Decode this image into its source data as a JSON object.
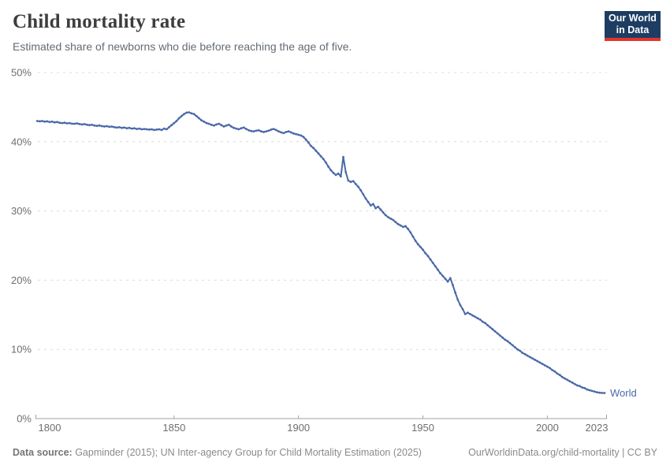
{
  "header": {
    "title": "Child mortality rate",
    "subtitle": "Estimated share of newborns who die before reaching the age of five.",
    "logo": {
      "line1": "Our World",
      "line2": "in Data"
    }
  },
  "footer": {
    "source_label": "Data source:",
    "source_text": " Gapminder (2015); UN Inter-agency Group for Child Mortality Estimation (2025)",
    "url": "OurWorldinData.org/child-mortality",
    "license_suffix": " | CC BY"
  },
  "chart_data": {
    "type": "line",
    "title": "Child mortality rate",
    "xlabel": "",
    "ylabel": "",
    "xlim": [
      1795,
      2023
    ],
    "ylim": [
      0,
      50
    ],
    "grid": "horizontal-dashed",
    "legend_position": "end-of-line",
    "colors": {
      "line": "#4a69a8",
      "gridline": "#dcdcdc",
      "axis": "#a1a1a1",
      "tick_label": "#6e6e6e"
    },
    "y_ticks": [
      {
        "value": 0,
        "label": "0%"
      },
      {
        "value": 10,
        "label": "10%"
      },
      {
        "value": 20,
        "label": "20%"
      },
      {
        "value": 30,
        "label": "30%"
      },
      {
        "value": 40,
        "label": "40%"
      },
      {
        "value": 50,
        "label": "50%"
      }
    ],
    "x_ticks": [
      {
        "value": 1800,
        "label": "1800"
      },
      {
        "value": 1850,
        "label": "1850"
      },
      {
        "value": 1900,
        "label": "1900"
      },
      {
        "value": 1950,
        "label": "1950"
      },
      {
        "value": 2000,
        "label": "2000"
      },
      {
        "value": 2023,
        "label": "2023"
      }
    ],
    "series": [
      {
        "name": "World",
        "color": "#4a69a8",
        "start_year": 1795,
        "end_year": 2023,
        "annual_values": [
          43.0,
          42.95,
          43.0,
          42.9,
          42.95,
          42.85,
          42.9,
          42.8,
          42.85,
          42.75,
          42.7,
          42.75,
          42.65,
          42.7,
          42.6,
          42.6,
          42.65,
          42.55,
          42.5,
          42.55,
          42.45,
          42.4,
          42.45,
          42.35,
          42.3,
          42.35,
          42.25,
          42.2,
          42.25,
          42.15,
          42.2,
          42.1,
          42.05,
          42.1,
          42.0,
          42.05,
          41.95,
          42.0,
          41.9,
          41.95,
          41.85,
          41.9,
          41.8,
          41.85,
          41.8,
          41.75,
          41.8,
          41.7,
          41.75,
          41.8,
          41.7,
          41.9,
          41.8,
          42.1,
          42.4,
          42.7,
          43.0,
          43.4,
          43.7,
          44.0,
          44.2,
          44.25,
          44.1,
          44.0,
          43.7,
          43.4,
          43.1,
          42.9,
          42.7,
          42.6,
          42.45,
          42.35,
          42.5,
          42.6,
          42.4,
          42.2,
          42.35,
          42.45,
          42.2,
          42.0,
          41.9,
          41.8,
          41.95,
          42.05,
          41.85,
          41.65,
          41.55,
          41.5,
          41.6,
          41.65,
          41.5,
          41.4,
          41.5,
          41.6,
          41.75,
          41.85,
          41.7,
          41.5,
          41.35,
          41.25,
          41.4,
          41.5,
          41.35,
          41.2,
          41.1,
          41.0,
          40.9,
          40.7,
          40.3,
          39.9,
          39.4,
          39.1,
          38.7,
          38.3,
          37.9,
          37.5,
          37.0,
          36.4,
          35.9,
          35.5,
          35.2,
          35.4,
          35.0,
          37.8,
          35.6,
          34.4,
          34.2,
          34.3,
          33.9,
          33.5,
          33.0,
          32.4,
          31.8,
          31.3,
          30.8,
          31.0,
          30.4,
          30.6,
          30.2,
          29.8,
          29.4,
          29.1,
          28.9,
          28.7,
          28.4,
          28.1,
          27.9,
          27.7,
          27.8,
          27.4,
          26.9,
          26.3,
          25.7,
          25.2,
          24.8,
          24.4,
          23.9,
          23.5,
          23.0,
          22.5,
          22.0,
          21.5,
          21.0,
          20.6,
          20.2,
          19.8,
          20.3,
          19.3,
          18.2,
          17.2,
          16.4,
          15.8,
          15.1,
          15.3,
          15.1,
          14.9,
          14.7,
          14.5,
          14.3,
          14.0,
          13.8,
          13.5,
          13.2,
          12.9,
          12.6,
          12.3,
          12.0,
          11.7,
          11.4,
          11.2,
          10.9,
          10.6,
          10.3,
          10.0,
          9.8,
          9.5,
          9.3,
          9.1,
          8.9,
          8.7,
          8.5,
          8.3,
          8.1,
          7.9,
          7.7,
          7.5,
          7.3,
          7.0,
          6.8,
          6.5,
          6.3,
          6.0,
          5.8,
          5.6,
          5.4,
          5.2,
          5.0,
          4.8,
          4.7,
          4.5,
          4.4,
          4.2,
          4.1,
          4.0,
          3.9,
          3.8,
          3.75,
          3.7,
          3.7
        ]
      }
    ]
  }
}
